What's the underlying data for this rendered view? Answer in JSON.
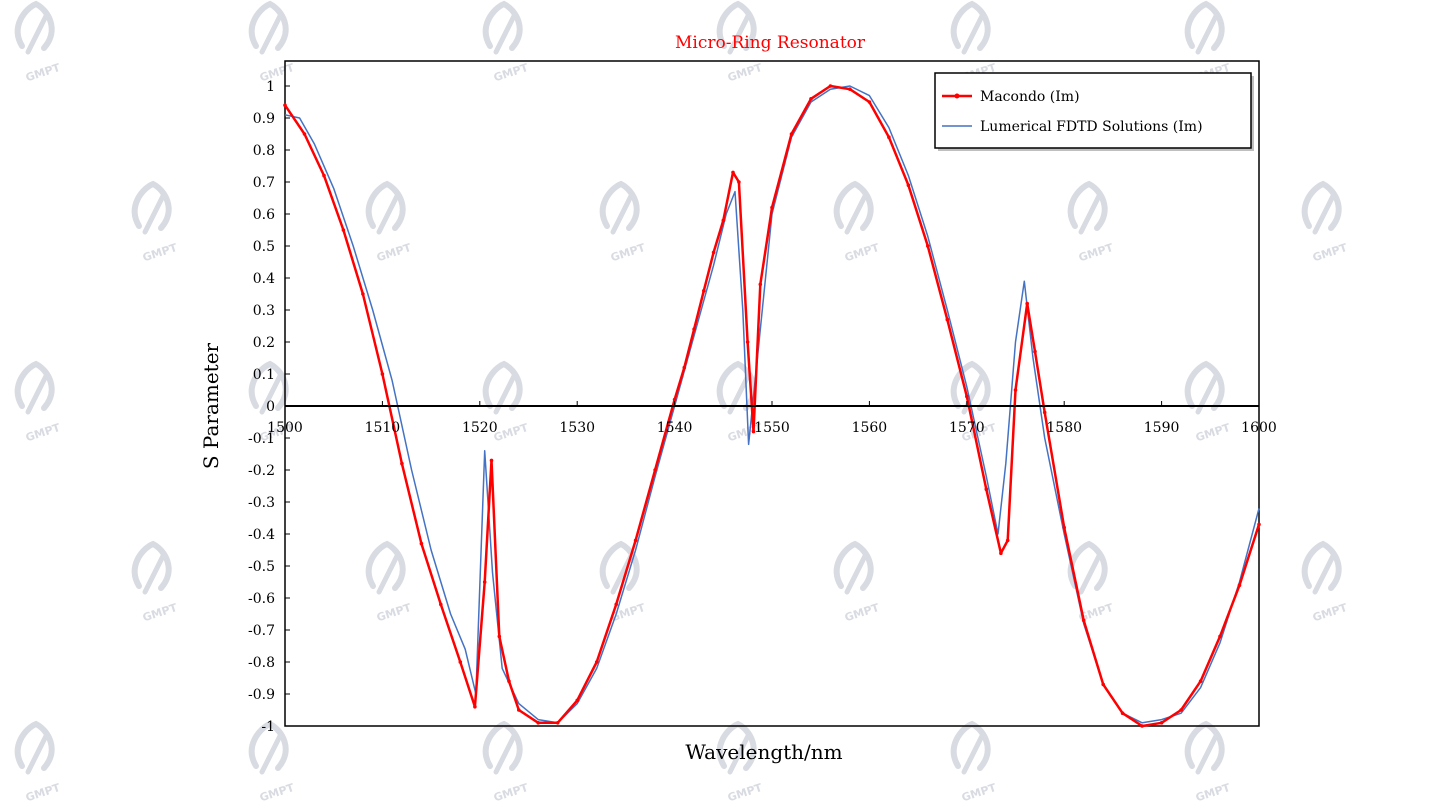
{
  "watermark": {
    "text": "GMPT",
    "color": "#d9dbe2"
  },
  "chart_data": {
    "type": "line",
    "title": "Micro-Ring Resonator",
    "title_color": "#ff0000",
    "xlabel": "Wavelength/nm",
    "ylabel": "S Parameter",
    "xlim": [
      1500,
      1600
    ],
    "ylim": [
      -1,
      1
    ],
    "x_ticks": [
      1500,
      1510,
      1520,
      1530,
      1540,
      1550,
      1560,
      1570,
      1580,
      1590,
      1600
    ],
    "y_ticks": [
      1,
      0.9,
      0.8,
      0.7,
      0.6,
      0.5,
      0.4,
      0.3,
      0.2,
      0.1,
      0,
      -0.1,
      -0.2,
      -0.3,
      -0.4,
      -0.5,
      -0.6,
      -0.7,
      -0.8,
      -0.9,
      -1
    ],
    "grid": false,
    "legend_position": "top-right",
    "series": [
      {
        "name": "Macondo  (Im)",
        "color": "#ff0000",
        "marker": "dot",
        "x": [
          1500,
          1502,
          1504,
          1506,
          1508,
          1510,
          1512,
          1514,
          1516,
          1518,
          1519.5,
          1520.5,
          1521.2,
          1522,
          1523,
          1524,
          1526,
          1528,
          1530,
          1532,
          1534,
          1536,
          1538,
          1540,
          1541,
          1542,
          1543,
          1544,
          1545,
          1546,
          1546.6,
          1547.5,
          1548.1,
          1548.8,
          1550,
          1552,
          1554,
          1556,
          1558,
          1560,
          1562,
          1564,
          1566,
          1568,
          1570,
          1572,
          1573.5,
          1574.2,
          1575,
          1576.2,
          1577,
          1578,
          1580,
          1582,
          1584,
          1586,
          1588,
          1590,
          1592,
          1594,
          1596,
          1598,
          1600
        ],
        "y": [
          0.94,
          0.85,
          0.72,
          0.55,
          0.35,
          0.1,
          -0.18,
          -0.43,
          -0.62,
          -0.8,
          -0.94,
          -0.55,
          -0.17,
          -0.72,
          -0.86,
          -0.95,
          -0.99,
          -0.99,
          -0.92,
          -0.8,
          -0.62,
          -0.42,
          -0.2,
          0.02,
          0.12,
          0.24,
          0.36,
          0.48,
          0.58,
          0.73,
          0.7,
          0.2,
          -0.08,
          0.38,
          0.62,
          0.85,
          0.96,
          1.0,
          0.99,
          0.95,
          0.84,
          0.69,
          0.5,
          0.27,
          0.03,
          -0.26,
          -0.46,
          -0.42,
          0.05,
          0.32,
          0.17,
          -0.02,
          -0.38,
          -0.67,
          -0.87,
          -0.96,
          -1.0,
          -0.99,
          -0.95,
          -0.86,
          -0.72,
          -0.56,
          -0.37
        ]
      },
      {
        "name": "Lumerical FDTD Solutions  (Im)",
        "color": "#4472c4",
        "marker": "none",
        "x": [
          1500,
          1501.5,
          1503,
          1505,
          1507,
          1509,
          1511,
          1513,
          1515,
          1517,
          1518.5,
          1519.6,
          1520.5,
          1521.3,
          1522.3,
          1524,
          1526,
          1528,
          1530,
          1532,
          1534,
          1536,
          1538,
          1540,
          1542,
          1544,
          1545.3,
          1546.2,
          1547,
          1547.6,
          1548.5,
          1550,
          1552,
          1554,
          1556,
          1558,
          1560,
          1562,
          1564,
          1566,
          1568,
          1570,
          1572,
          1573.2,
          1574,
          1575,
          1575.9,
          1576.8,
          1578,
          1580,
          1582,
          1584,
          1586,
          1588,
          1590,
          1592,
          1594,
          1596,
          1598,
          1600
        ],
        "y": [
          0.91,
          0.9,
          0.82,
          0.68,
          0.5,
          0.3,
          0.08,
          -0.2,
          -0.45,
          -0.65,
          -0.76,
          -0.9,
          -0.14,
          -0.52,
          -0.82,
          -0.93,
          -0.98,
          -0.99,
          -0.93,
          -0.82,
          -0.65,
          -0.45,
          -0.22,
          0.0,
          0.22,
          0.44,
          0.6,
          0.67,
          0.3,
          -0.12,
          0.15,
          0.6,
          0.84,
          0.95,
          0.99,
          1.0,
          0.97,
          0.87,
          0.72,
          0.53,
          0.3,
          0.06,
          -0.22,
          -0.4,
          -0.18,
          0.2,
          0.39,
          0.15,
          -0.1,
          -0.4,
          -0.68,
          -0.87,
          -0.96,
          -0.99,
          -0.98,
          -0.96,
          -0.88,
          -0.74,
          -0.55,
          -0.32
        ]
      }
    ]
  }
}
